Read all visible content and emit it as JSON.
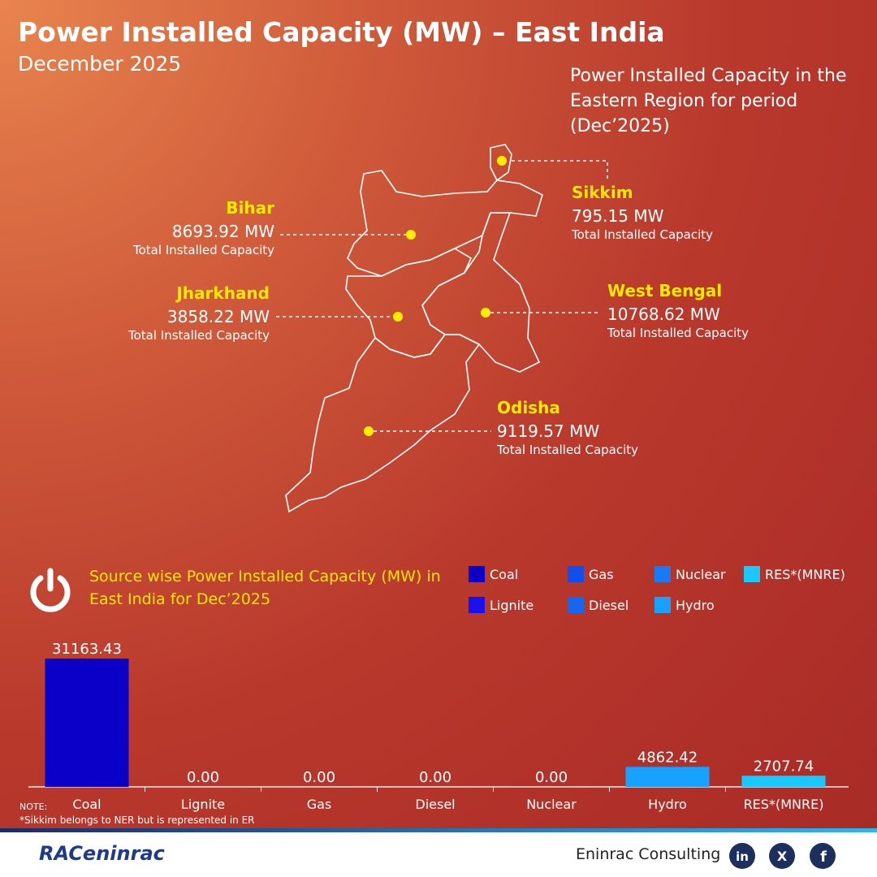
{
  "header": {
    "title": "Power Installed Capacity (MW) – East India",
    "subtitle": "December 2025",
    "description": "Power Installed Capacity in the Eastern Region for period (Dec’2025)"
  },
  "states": [
    {
      "name": "Bihar",
      "value": "8693.92 MW",
      "label": "Total Installed Capacity"
    },
    {
      "name": "Jharkhand",
      "value": "3858.22 MW",
      "label": "Total Installed Capacity"
    },
    {
      "name": "Sikkim",
      "value": "795.15 MW",
      "label": "Total Installed Capacity"
    },
    {
      "name": "West Bengal",
      "value": "10768.62 MW",
      "label": "Total Installed Capacity"
    },
    {
      "name": "Odisha",
      "value": "9119.57 MW",
      "label": "Total Installed Capacity"
    }
  ],
  "chart_data": {
    "type": "bar",
    "title": "Source wise Power Installed Capacity (MW) in East India for Dec’2025",
    "categories": [
      "Coal",
      "Lignite",
      "Gas",
      "Diesel",
      "Nuclear",
      "Hydro",
      "RES*(MNRE)"
    ],
    "values": [
      31163.43,
      0,
      0,
      0,
      0,
      4862.42,
      2707.74
    ],
    "value_labels": [
      "31163.43",
      "0.00",
      "0.00",
      "0.00",
      "0.00",
      "4862.42",
      "2707.74"
    ],
    "colors": [
      "#0a00c8",
      "#1a10f2",
      "#0f4ff0",
      "#1566f0",
      "#1a7af5",
      "#17a2ff",
      "#18c8ff"
    ]
  },
  "note": {
    "heading": "NOTE:",
    "text": "*Sikkim belongs to NER but is represented in ER"
  },
  "footer": {
    "logo": "RACeninrac",
    "company": "Eninrac Consulting"
  }
}
